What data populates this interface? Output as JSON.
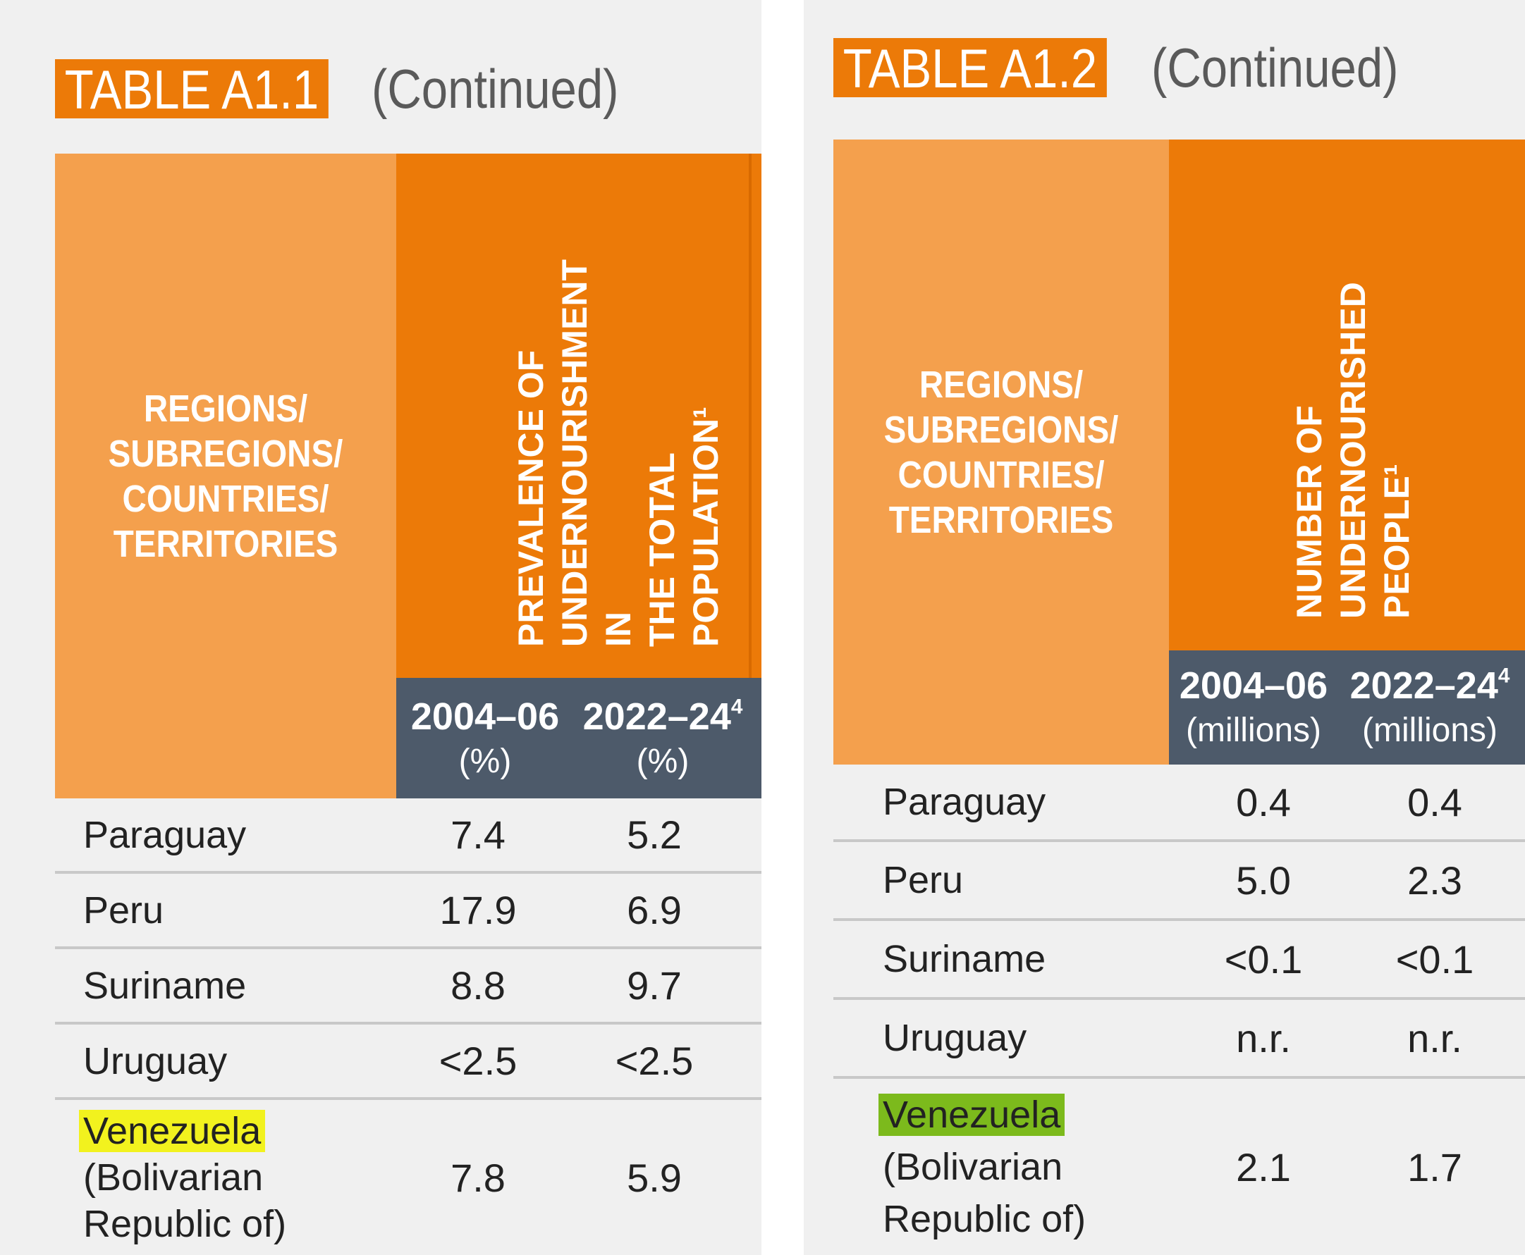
{
  "tables": [
    {
      "label": "TABLE A1.1",
      "continued": "(Continued)",
      "region_header": "REGIONS/\nSUBREGIONS/\nCOUNTRIES/\nTERRITORIES",
      "measure_header": "PREVALENCE OF\nUNDERNOURISHMENT IN\nTHE TOTAL POPULATION¹",
      "col1_year": "2004–06",
      "col1_unit": "(%)",
      "col2_year": "2022–24",
      "col2_sup": "4",
      "col2_unit": "(%)",
      "rows": [
        {
          "country": "Paraguay",
          "v1": "7.4",
          "v2": "5.2"
        },
        {
          "country": "Peru",
          "v1": "17.9",
          "v2": "6.9"
        },
        {
          "country": "Suriname",
          "v1": "8.8",
          "v2": "9.7"
        },
        {
          "country": "Uruguay",
          "v1": "<2.5",
          "v2": "<2.5"
        },
        {
          "country_l1": "Venezuela",
          "country_l2": "(Bolivarian",
          "country_l3": "Republic of)",
          "v1": "7.8",
          "v2": "5.9"
        }
      ]
    },
    {
      "label": "TABLE A1.2",
      "continued": "(Continued)",
      "region_header": "REGIONS/\nSUBREGIONS/\nCOUNTRIES/\nTERRITORIES",
      "measure_header": "NUMBER OF\nUNDERNOURISHED\nPEOPLE¹",
      "col1_year": "2004–06",
      "col1_unit": "(millions)",
      "col2_year": "2022–24",
      "col2_sup": "4",
      "col2_unit": "(millions)",
      "rows": [
        {
          "country": "Paraguay",
          "v1": "0.4",
          "v2": "0.4"
        },
        {
          "country": "Peru",
          "v1": "5.0",
          "v2": "2.3"
        },
        {
          "country": "Suriname",
          "v1": "<0.1",
          "v2": "<0.1"
        },
        {
          "country": "Uruguay",
          "v1": "n.r.",
          "v2": "n.r."
        },
        {
          "country_l1": "Venezuela",
          "country_l2": "(Bolivarian",
          "country_l3": "Republic of)",
          "v1": "2.1",
          "v2": "1.7"
        }
      ]
    }
  ],
  "colors": {
    "orange": "#ec7a08",
    "light_orange": "#f4a04d",
    "slate": "#4d5a6a",
    "highlight_yellow": "#f2f21e",
    "highlight_green": "#7cba1c"
  }
}
